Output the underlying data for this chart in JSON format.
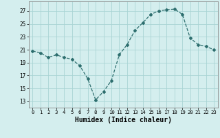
{
  "x": [
    0,
    1,
    2,
    3,
    4,
    5,
    6,
    7,
    8,
    9,
    10,
    11,
    12,
    13,
    14,
    15,
    16,
    17,
    18,
    19,
    20,
    21,
    22,
    23
  ],
  "y": [
    20.8,
    20.5,
    19.8,
    20.2,
    19.8,
    19.5,
    18.5,
    16.5,
    13.2,
    14.5,
    16.2,
    20.2,
    21.8,
    24.0,
    25.2,
    26.5,
    27.0,
    27.2,
    27.3,
    26.5,
    22.8,
    21.8,
    21.5,
    21.0
  ],
  "line_color": "#2d6e6e",
  "marker": "D",
  "marker_size": 2,
  "bg_color": "#d4eeee",
  "grid_color": "#aad4d4",
  "xlabel": "Humidex (Indice chaleur)",
  "xlim": [
    -0.5,
    23.5
  ],
  "ylim": [
    12,
    28.5
  ],
  "yticks": [
    13,
    15,
    17,
    19,
    21,
    23,
    25,
    27
  ],
  "xticks": [
    0,
    1,
    2,
    3,
    4,
    5,
    6,
    7,
    8,
    9,
    10,
    11,
    12,
    13,
    14,
    15,
    16,
    17,
    18,
    19,
    20,
    21,
    22,
    23
  ],
  "tick_fontsize": 5.5,
  "xlabel_fontsize": 7
}
